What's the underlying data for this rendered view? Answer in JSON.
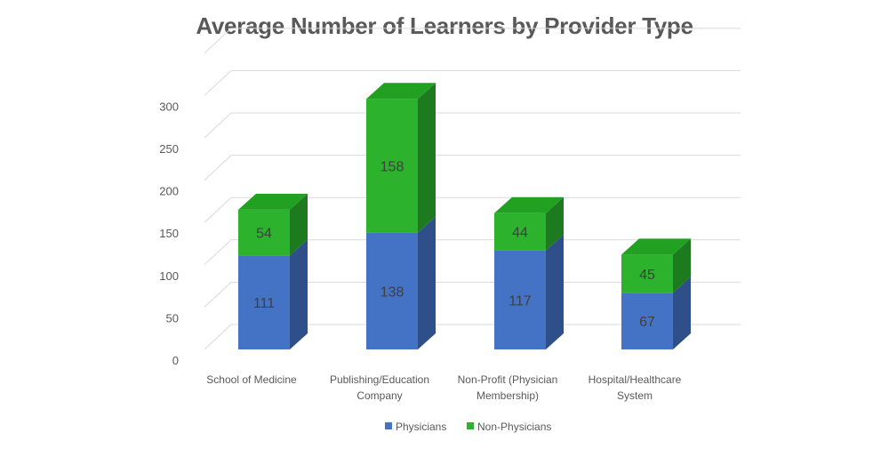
{
  "chart_data": {
    "type": "bar",
    "stacked": true,
    "three_d": true,
    "title": "Average Number of Learners by Provider Type",
    "categories": [
      [
        "School of Medicine"
      ],
      [
        "Publishing/Education",
        "Company"
      ],
      [
        "Non-Profit (Physician",
        "Membership)"
      ],
      [
        "Hospital/Healthcare",
        "System"
      ]
    ],
    "series": [
      {
        "name": "Physicians",
        "values": [
          111,
          138,
          117,
          67
        ],
        "color": "#4472C4",
        "side_color": "#2F4F8A",
        "top_color": "#5B86CF"
      },
      {
        "name": "Non-Physicians",
        "values": [
          54,
          158,
          44,
          45
        ],
        "color": "#2CB22C",
        "side_color": "#1E7A1E",
        "top_color": "#22A022"
      }
    ],
    "y_ticks": [
      "0",
      "50",
      "100",
      "150",
      "200",
      "250",
      "300"
    ],
    "ylim": [
      0,
      300
    ],
    "grid": true,
    "legend_position": "bottom"
  }
}
